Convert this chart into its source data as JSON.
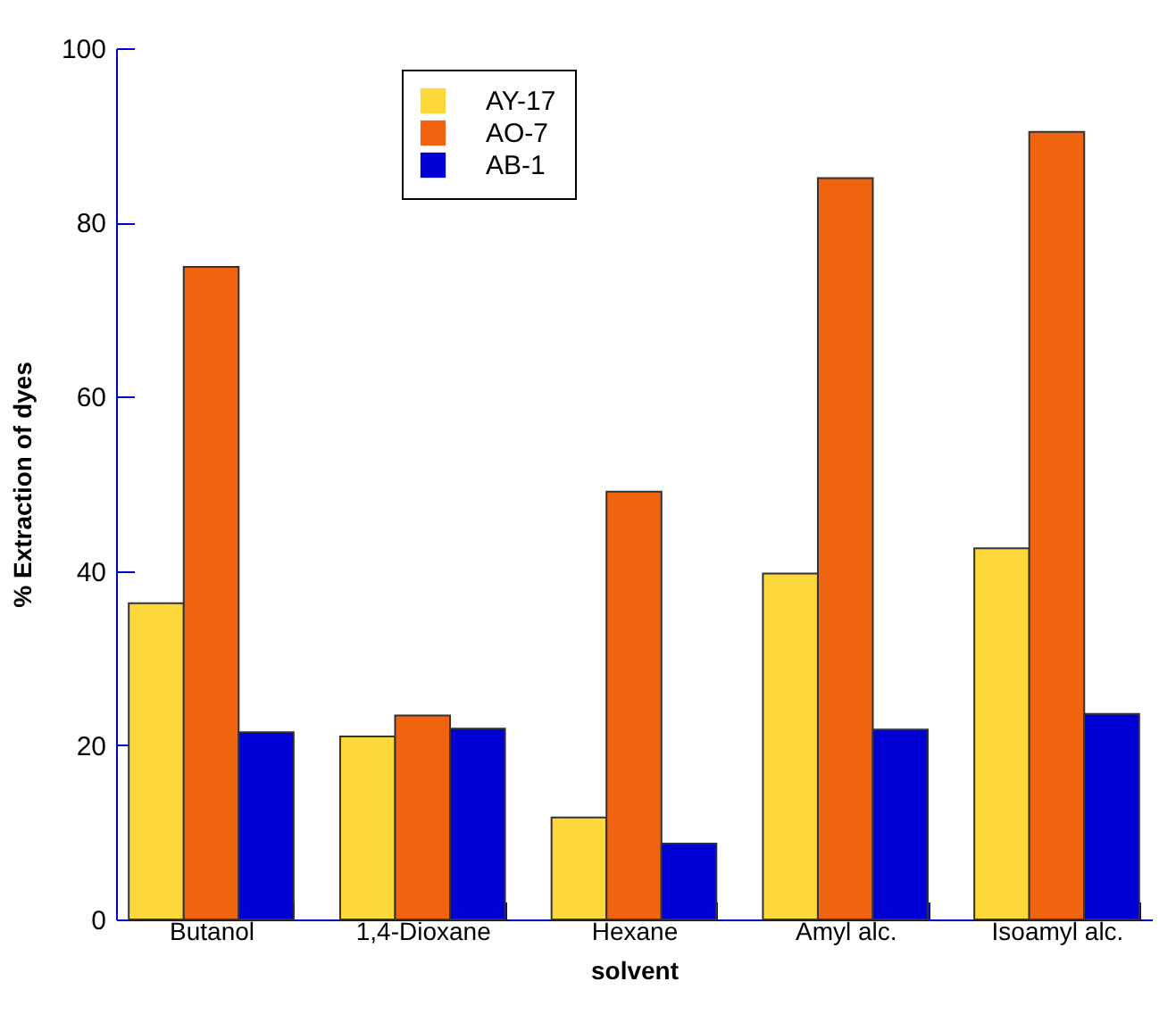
{
  "chart_data": {
    "type": "bar",
    "xlabel": "solvent",
    "ylabel": "% Extraction of dyes",
    "categories": [
      "Butanol",
      "1,4-Dioxane",
      "Hexane",
      "Amyl alc.",
      "Isoamyl alc."
    ],
    "series": [
      {
        "name": "AY-17",
        "color": "#fdd83a",
        "values": [
          36.3,
          21.0,
          11.7,
          39.7,
          42.6
        ]
      },
      {
        "name": "AO-7",
        "color": "#f06410",
        "values": [
          74.9,
          23.4,
          49.1,
          85.1,
          90.4
        ]
      },
      {
        "name": "AB-1",
        "color": "#0000d4",
        "values": [
          21.5,
          21.9,
          8.7,
          21.8,
          23.6
        ]
      }
    ],
    "ylim": [
      0,
      100
    ],
    "yticks": [
      0,
      20,
      40,
      60,
      80,
      100
    ],
    "grid": false,
    "legend": "top"
  }
}
